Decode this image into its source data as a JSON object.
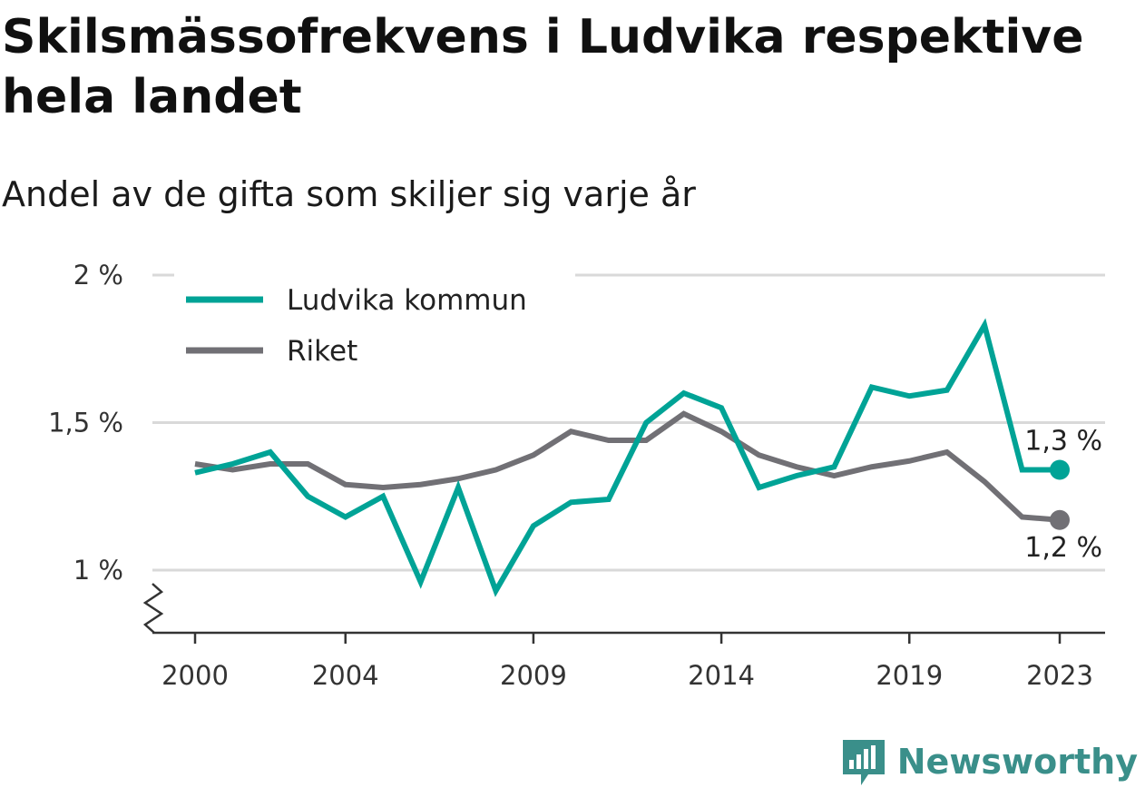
{
  "title": "Skilsmässofrekvens i Ludvika respektive hela landet",
  "subtitle": "Andel av de gifta som skiljer sig varje år",
  "brand": {
    "name": "Newsworthy",
    "icon": "newsworthy-logo-icon",
    "color": "#3a8f8a"
  },
  "chart_data": {
    "type": "line",
    "x": [
      2000,
      2001,
      2002,
      2003,
      2004,
      2005,
      2006,
      2007,
      2008,
      2009,
      2010,
      2011,
      2012,
      2013,
      2014,
      2015,
      2016,
      2017,
      2018,
      2019,
      2020,
      2021,
      2022,
      2023
    ],
    "x_ticks": [
      2000,
      2004,
      2009,
      2014,
      2019,
      2023
    ],
    "x_tick_labels": [
      "2000",
      "2004",
      "2009",
      "2014",
      "2019",
      "2023"
    ],
    "y_ticks": [
      1,
      1.5,
      2
    ],
    "y_tick_labels": [
      "1 %",
      "1,5 %",
      "2 %"
    ],
    "ylim": [
      0.8,
      2.0
    ],
    "axis_break": true,
    "grid": true,
    "legend_position": "top-left",
    "series": [
      {
        "name": "Ludvika kommun",
        "color": "#00a396",
        "values": [
          1.33,
          1.36,
          1.4,
          1.25,
          1.18,
          1.25,
          0.96,
          1.28,
          0.93,
          1.15,
          1.23,
          1.24,
          1.5,
          1.6,
          1.55,
          1.28,
          1.32,
          1.35,
          1.62,
          1.59,
          1.61,
          1.83,
          1.34,
          1.34
        ],
        "end_label": "1,3 %"
      },
      {
        "name": "Riket",
        "color": "#717075",
        "values": [
          1.36,
          1.34,
          1.36,
          1.36,
          1.29,
          1.28,
          1.29,
          1.31,
          1.34,
          1.39,
          1.47,
          1.44,
          1.44,
          1.53,
          1.47,
          1.39,
          1.35,
          1.32,
          1.35,
          1.37,
          1.4,
          1.3,
          1.18,
          1.17
        ],
        "end_label": "1,2 %"
      }
    ]
  }
}
